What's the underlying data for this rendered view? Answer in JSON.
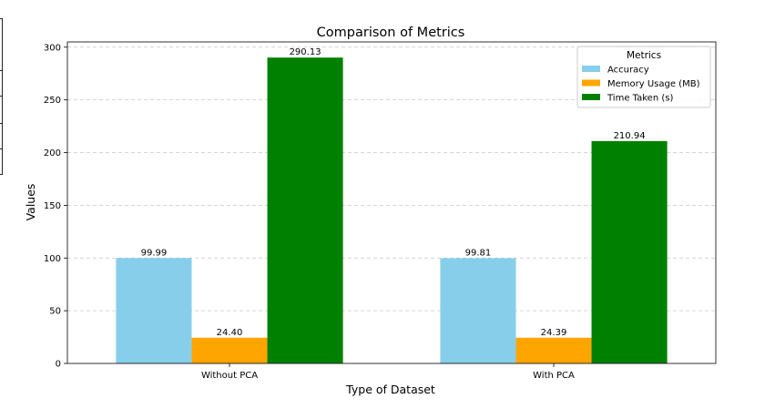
{
  "chart_data": {
    "type": "bar",
    "title": "Comparison of Metrics",
    "xlabel": "Type of Dataset",
    "ylabel": "Values",
    "categories": [
      "Without PCA",
      "With PCA"
    ],
    "series": [
      {
        "name": "Accuracy",
        "values": [
          99.99,
          99.81
        ],
        "color": "#87CEEB",
        "value_labels": [
          "99.99",
          "99.81"
        ]
      },
      {
        "name": "Memory Usage (MB)",
        "values": [
          24.4,
          24.39
        ],
        "color": "#FFA500",
        "value_labels": [
          "24.40",
          "24.39"
        ]
      },
      {
        "name": "Time Taken (s)",
        "values": [
          290.13,
          210.94
        ],
        "color": "#008000",
        "value_labels": [
          "290.13",
          "210.94"
        ]
      }
    ],
    "ylim": [
      0,
      305
    ],
    "yticks": [
      0,
      50,
      100,
      150,
      200,
      250,
      300
    ],
    "grid": "y-dashed",
    "legend": {
      "title": "Metrics",
      "position": "top-right"
    }
  }
}
